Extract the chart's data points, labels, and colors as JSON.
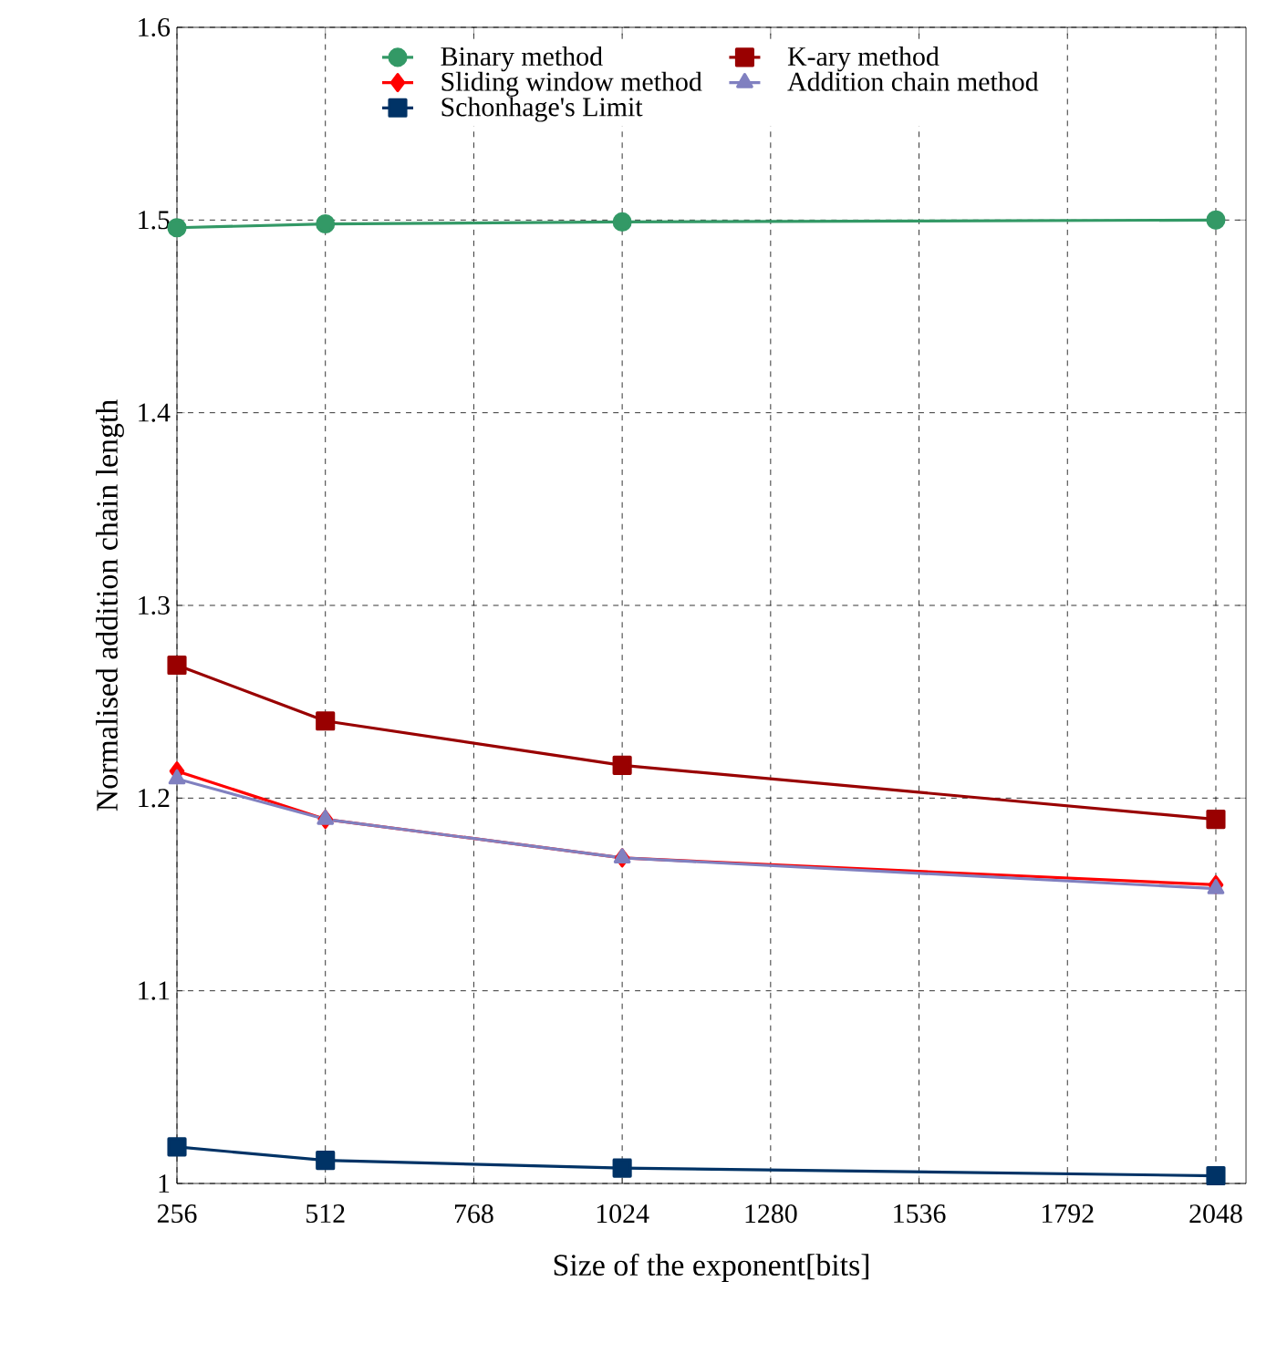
{
  "chart_data": {
    "type": "line",
    "xlabel": "Size of the exponent[bits]",
    "ylabel": "Normalised addition chain length",
    "x": [
      256,
      512,
      1024,
      2048
    ],
    "series": [
      {
        "name": "Binary method",
        "color": "#339966",
        "marker": "circle",
        "values": [
          1.496,
          1.498,
          1.499,
          1.5
        ]
      },
      {
        "name": "K-ary method",
        "color": "#990000",
        "marker": "square",
        "values": [
          1.269,
          1.24,
          1.217,
          1.189
        ]
      },
      {
        "name": "Sliding window method",
        "color": "#ff0000",
        "marker": "diamond",
        "values": [
          1.214,
          1.189,
          1.169,
          1.155
        ]
      },
      {
        "name": "Addition chain method",
        "color": "#8080c0",
        "marker": "triangle",
        "values": [
          1.21,
          1.189,
          1.169,
          1.153
        ]
      },
      {
        "name": "Schonhage's Limit",
        "color": "#003366",
        "marker": "square",
        "values": [
          1.019,
          1.012,
          1.008,
          1.004
        ]
      }
    ],
    "xlim": [
      256,
      2100
    ],
    "ylim": [
      1,
      1.6
    ],
    "xticks": [
      256,
      512,
      768,
      1024,
      1280,
      1536,
      1792,
      2048
    ],
    "yticks": [
      1,
      1.1,
      1.2,
      1.3,
      1.4,
      1.5,
      1.6
    ],
    "grid": true,
    "legend": "top",
    "line_style": "solid"
  }
}
